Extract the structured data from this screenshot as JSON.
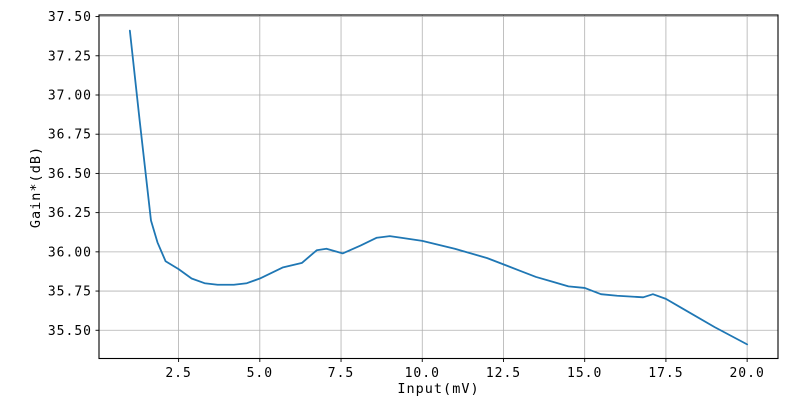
{
  "chart_data": {
    "type": "line",
    "title": "",
    "xlabel": "Input(mV)",
    "ylabel": "Gain*(dB)",
    "x": [
      1.0,
      1.3,
      1.65,
      1.85,
      2.1,
      2.5,
      2.9,
      3.3,
      3.7,
      4.2,
      4.6,
      5.0,
      5.7,
      6.3,
      6.75,
      7.05,
      7.55,
      8.1,
      8.6,
      9.0,
      9.35,
      10.0,
      11.0,
      12.0,
      12.5,
      13.0,
      13.5,
      14.0,
      14.5,
      15.0,
      15.5,
      16.0,
      16.8,
      17.1,
      17.5,
      18.0,
      19.0,
      20.0
    ],
    "series": [
      {
        "name": "Gain",
        "color": "#1f77b4",
        "values": [
          37.41,
          36.84,
          36.2,
          36.06,
          35.94,
          35.89,
          35.83,
          35.8,
          35.79,
          35.79,
          35.8,
          35.83,
          35.9,
          35.93,
          36.01,
          36.02,
          35.99,
          36.04,
          36.09,
          36.1,
          36.09,
          36.07,
          36.02,
          35.96,
          35.92,
          35.88,
          35.84,
          35.81,
          35.78,
          35.77,
          35.73,
          35.72,
          35.71,
          35.73,
          35.7,
          35.64,
          35.52,
          35.41
        ]
      }
    ],
    "xlim": [
      0.05,
      20.95
    ],
    "ylim": [
      35.32,
      37.51
    ],
    "xticks": {
      "values": [
        2.5,
        5,
        7.5,
        10,
        12.5,
        15,
        17.5,
        20
      ],
      "labels": [
        "2.5",
        "5.0",
        "7.5",
        "10.0",
        "12.5",
        "15.0",
        "17.5",
        "20.0"
      ]
    },
    "yticks": {
      "values": [
        35.5,
        35.75,
        36.0,
        36.25,
        36.5,
        36.75,
        37.0,
        37.25,
        37.5
      ],
      "labels": [
        "35.50",
        "35.75",
        "36.00",
        "36.25",
        "36.50",
        "36.75",
        "37.00",
        "37.25",
        "37.50"
      ]
    },
    "grid": true,
    "legend": null,
    "colors": {
      "line": "#1f77b4",
      "grid": "#b0b0b0",
      "spine": "#000000",
      "text": "#000000",
      "background": "#ffffff"
    }
  }
}
